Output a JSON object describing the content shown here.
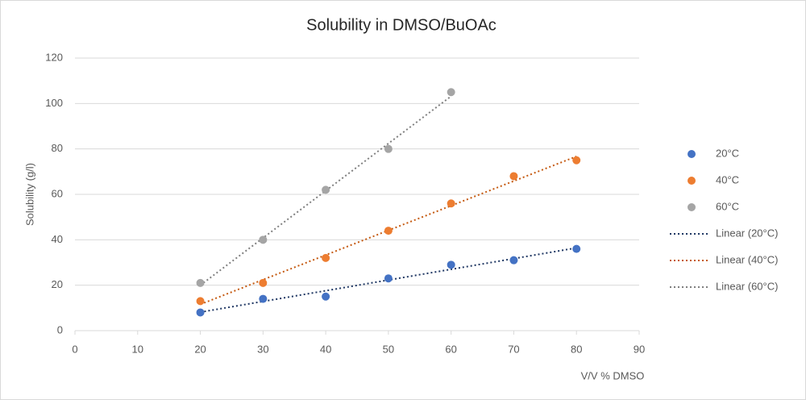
{
  "chart_data": {
    "type": "scatter",
    "title": "Solubility in DMSO/BuOAc",
    "x_label": "V/V % DMSO",
    "y_label": "Solubility (g/l)",
    "xlim": [
      0,
      90
    ],
    "xticks": [
      0,
      10,
      20,
      30,
      40,
      50,
      60,
      70,
      80,
      90
    ],
    "ylim": [
      0,
      120
    ],
    "yticks": [
      0,
      20,
      40,
      60,
      80,
      100,
      120
    ],
    "grid": true,
    "legend": "right",
    "series": [
      {
        "name": "20°C",
        "color": "#4472c4",
        "x": [
          20,
          30,
          40,
          50,
          60,
          70,
          80
        ],
        "values": [
          8,
          14,
          15,
          23,
          29,
          31,
          36
        ],
        "trendline": {
          "type": "linear",
          "name": "Linear (20°C)",
          "color": "#203864"
        }
      },
      {
        "name": "40°C",
        "color": "#ed7d31",
        "x": [
          20,
          30,
          40,
          50,
          60,
          70,
          80
        ],
        "values": [
          13,
          21,
          32,
          44,
          56,
          68,
          75
        ],
        "trendline": {
          "type": "linear",
          "name": "Linear (40°C)",
          "color": "#c55a11"
        }
      },
      {
        "name": "60°C",
        "color": "#a5a5a5",
        "x": [
          20,
          30,
          40,
          50,
          60
        ],
        "values": [
          21,
          40,
          62,
          80,
          105
        ],
        "trendline": {
          "type": "linear",
          "name": "Linear (60°C)",
          "color": "#7f7f7f"
        }
      }
    ]
  }
}
